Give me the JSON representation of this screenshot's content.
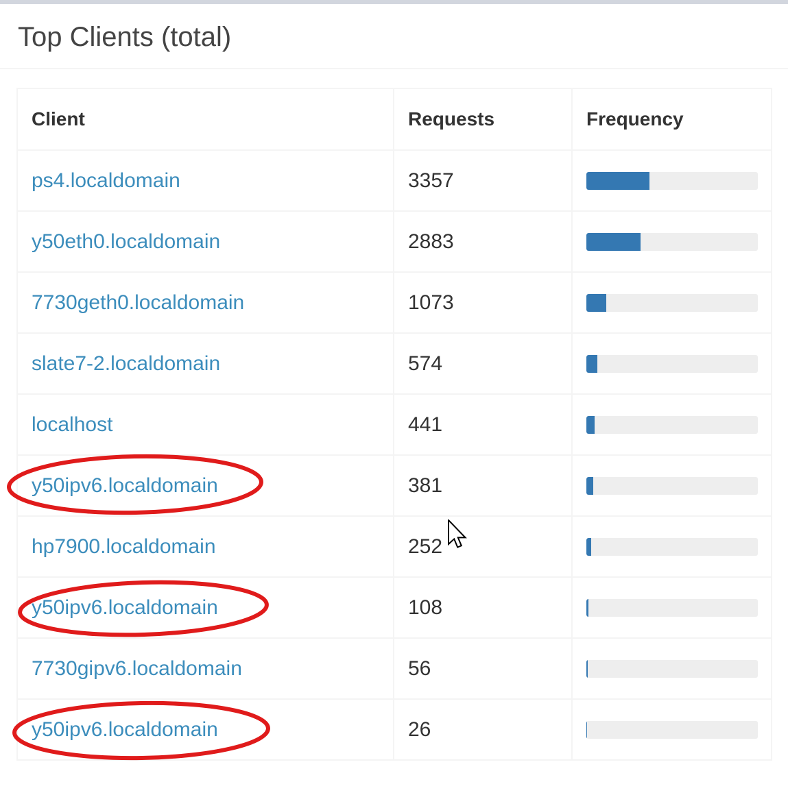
{
  "panel": {
    "title": "Top Clients (total)"
  },
  "table": {
    "columns": [
      "Client",
      "Requests",
      "Frequency"
    ],
    "rows": [
      {
        "client": "ps4.localdomain",
        "requests": "3357",
        "frequency_pct": 36.68,
        "circled": false
      },
      {
        "client": "y50eth0.localdomain",
        "requests": "2883",
        "frequency_pct": 31.51,
        "circled": false
      },
      {
        "client": "7730geth0.localdomain",
        "requests": "1073",
        "frequency_pct": 11.73,
        "circled": false
      },
      {
        "client": "slate7-2.localdomain",
        "requests": "574",
        "frequency_pct": 6.27,
        "circled": false
      },
      {
        "client": "localhost",
        "requests": "441",
        "frequency_pct": 4.82,
        "circled": false
      },
      {
        "client": "y50ipv6.localdomain",
        "requests": "381",
        "frequency_pct": 4.16,
        "circled": true
      },
      {
        "client": "hp7900.localdomain",
        "requests": "252",
        "frequency_pct": 2.75,
        "circled": false
      },
      {
        "client": "y50ipv6.localdomain",
        "requests": "108",
        "frequency_pct": 1.18,
        "circled": true
      },
      {
        "client": "7730gipv6.localdomain",
        "requests": "56",
        "frequency_pct": 0.61,
        "circled": false
      },
      {
        "client": "y50ipv6.localdomain",
        "requests": "26",
        "frequency_pct": 0.28,
        "circled": true
      }
    ]
  },
  "colors": {
    "link_blue": "#3c8dbc",
    "bar_fill": "#3478b2",
    "bar_track": "#eeeeee",
    "annotation_red": "#e01b1b",
    "border_gray": "#f4f4f4",
    "top_strip": "#d2d6de"
  }
}
